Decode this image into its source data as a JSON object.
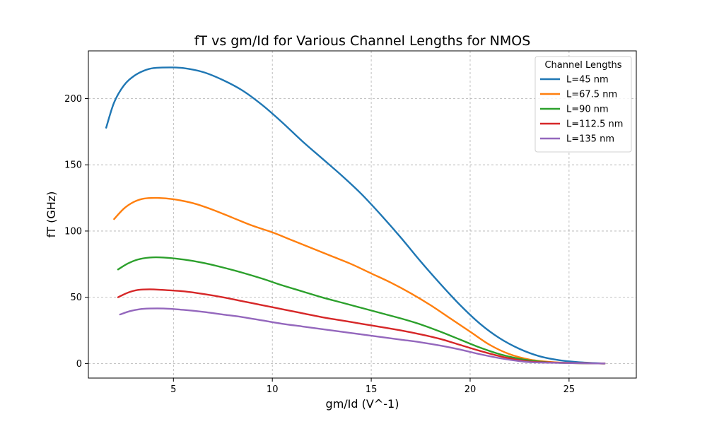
{
  "chart_data": {
    "type": "line",
    "title": "fT vs gm/Id for Various Channel Lengths for NMOS",
    "xlabel": "gm/Id (V^-1)",
    "ylabel": "fT (GHz)",
    "xlim": [
      0.7,
      28.4
    ],
    "ylim": [
      -11,
      236
    ],
    "xticks": [
      5,
      10,
      15,
      20,
      25
    ],
    "yticks": [
      0,
      50,
      100,
      150,
      200
    ],
    "grid": true,
    "legend": {
      "title": "Channel Lengths",
      "position": "top-right"
    },
    "series": [
      {
        "name": "L=45 nm",
        "color": "#1f77b4",
        "points": [
          [
            1.6,
            178
          ],
          [
            2.0,
            197
          ],
          [
            2.5,
            210
          ],
          [
            3.0,
            217
          ],
          [
            3.5,
            221
          ],
          [
            4.0,
            223
          ],
          [
            4.8,
            223.5
          ],
          [
            5.5,
            223
          ],
          [
            6.5,
            220
          ],
          [
            7.5,
            214
          ],
          [
            8.5,
            206
          ],
          [
            9.5,
            195
          ],
          [
            10.5,
            182
          ],
          [
            11.5,
            168
          ],
          [
            12.5,
            155
          ],
          [
            13.5,
            142
          ],
          [
            14.5,
            128
          ],
          [
            15.5,
            112
          ],
          [
            16.5,
            95
          ],
          [
            17.5,
            77
          ],
          [
            18.5,
            60
          ],
          [
            19.5,
            44
          ],
          [
            20.5,
            30
          ],
          [
            21.5,
            19
          ],
          [
            22.5,
            11
          ],
          [
            23.5,
            5.5
          ],
          [
            24.5,
            2.5
          ],
          [
            25.5,
            1
          ],
          [
            26.8,
            0
          ]
        ]
      },
      {
        "name": "L=67.5 nm",
        "color": "#ff7f0e",
        "points": [
          [
            2.0,
            109
          ],
          [
            2.5,
            117
          ],
          [
            3.0,
            122
          ],
          [
            3.5,
            124.5
          ],
          [
            4.2,
            125
          ],
          [
            5.0,
            124
          ],
          [
            6.0,
            121
          ],
          [
            7.0,
            116
          ],
          [
            8.0,
            110
          ],
          [
            9.0,
            104
          ],
          [
            10.0,
            99
          ],
          [
            11.0,
            93
          ],
          [
            12.0,
            87
          ],
          [
            13.0,
            81
          ],
          [
            14.0,
            75
          ],
          [
            15.0,
            68
          ],
          [
            16.0,
            61
          ],
          [
            17.0,
            53
          ],
          [
            18.0,
            44
          ],
          [
            19.0,
            34
          ],
          [
            20.0,
            24
          ],
          [
            21.0,
            14
          ],
          [
            22.0,
            7
          ],
          [
            23.0,
            3
          ],
          [
            24.0,
            1.2
          ],
          [
            25.0,
            0.4
          ],
          [
            26.8,
            0
          ]
        ]
      },
      {
        "name": "L=90 nm",
        "color": "#2ca02c",
        "points": [
          [
            2.2,
            71
          ],
          [
            2.7,
            75.5
          ],
          [
            3.2,
            78.5
          ],
          [
            3.8,
            80
          ],
          [
            4.5,
            80
          ],
          [
            5.5,
            78.5
          ],
          [
            6.5,
            76
          ],
          [
            7.5,
            72.5
          ],
          [
            8.5,
            68.5
          ],
          [
            9.5,
            64
          ],
          [
            10.5,
            59
          ],
          [
            11.5,
            54.5
          ],
          [
            12.5,
            50
          ],
          [
            13.5,
            46
          ],
          [
            14.5,
            42
          ],
          [
            15.5,
            38
          ],
          [
            16.5,
            34
          ],
          [
            17.5,
            29.5
          ],
          [
            18.5,
            24
          ],
          [
            19.5,
            18
          ],
          [
            20.5,
            12
          ],
          [
            21.5,
            7
          ],
          [
            22.5,
            3.5
          ],
          [
            23.5,
            1.5
          ],
          [
            24.5,
            0.5
          ],
          [
            26.8,
            0
          ]
        ]
      },
      {
        "name": "L=112.5 nm",
        "color": "#d62728",
        "points": [
          [
            2.2,
            50
          ],
          [
            2.7,
            53.5
          ],
          [
            3.2,
            55.5
          ],
          [
            3.8,
            56
          ],
          [
            4.5,
            55.5
          ],
          [
            5.5,
            54.5
          ],
          [
            6.5,
            52.5
          ],
          [
            7.5,
            50
          ],
          [
            8.5,
            47
          ],
          [
            9.5,
            44
          ],
          [
            10.5,
            41
          ],
          [
            11.5,
            38
          ],
          [
            12.5,
            35
          ],
          [
            13.5,
            32.5
          ],
          [
            14.5,
            30
          ],
          [
            15.5,
            27.5
          ],
          [
            16.5,
            25
          ],
          [
            17.5,
            22
          ],
          [
            18.5,
            18.5
          ],
          [
            19.5,
            14
          ],
          [
            20.5,
            9.5
          ],
          [
            21.5,
            5.5
          ],
          [
            22.5,
            2.5
          ],
          [
            23.5,
            1
          ],
          [
            26.8,
            0
          ]
        ]
      },
      {
        "name": "L=135 nm",
        "color": "#9467bd",
        "points": [
          [
            2.3,
            37
          ],
          [
            2.8,
            39.5
          ],
          [
            3.3,
            41
          ],
          [
            3.8,
            41.5
          ],
          [
            4.5,
            41.5
          ],
          [
            5.5,
            40.5
          ],
          [
            6.5,
            39
          ],
          [
            7.5,
            37
          ],
          [
            8.5,
            35
          ],
          [
            9.5,
            32.5
          ],
          [
            10.5,
            30
          ],
          [
            11.5,
            28
          ],
          [
            12.5,
            26
          ],
          [
            13.5,
            24
          ],
          [
            14.5,
            22
          ],
          [
            15.5,
            20
          ],
          [
            16.5,
            18
          ],
          [
            17.5,
            16
          ],
          [
            18.5,
            13.5
          ],
          [
            19.5,
            10.5
          ],
          [
            20.5,
            7
          ],
          [
            21.5,
            4
          ],
          [
            22.5,
            1.8
          ],
          [
            23.5,
            0.7
          ],
          [
            26.8,
            0
          ]
        ]
      }
    ]
  }
}
